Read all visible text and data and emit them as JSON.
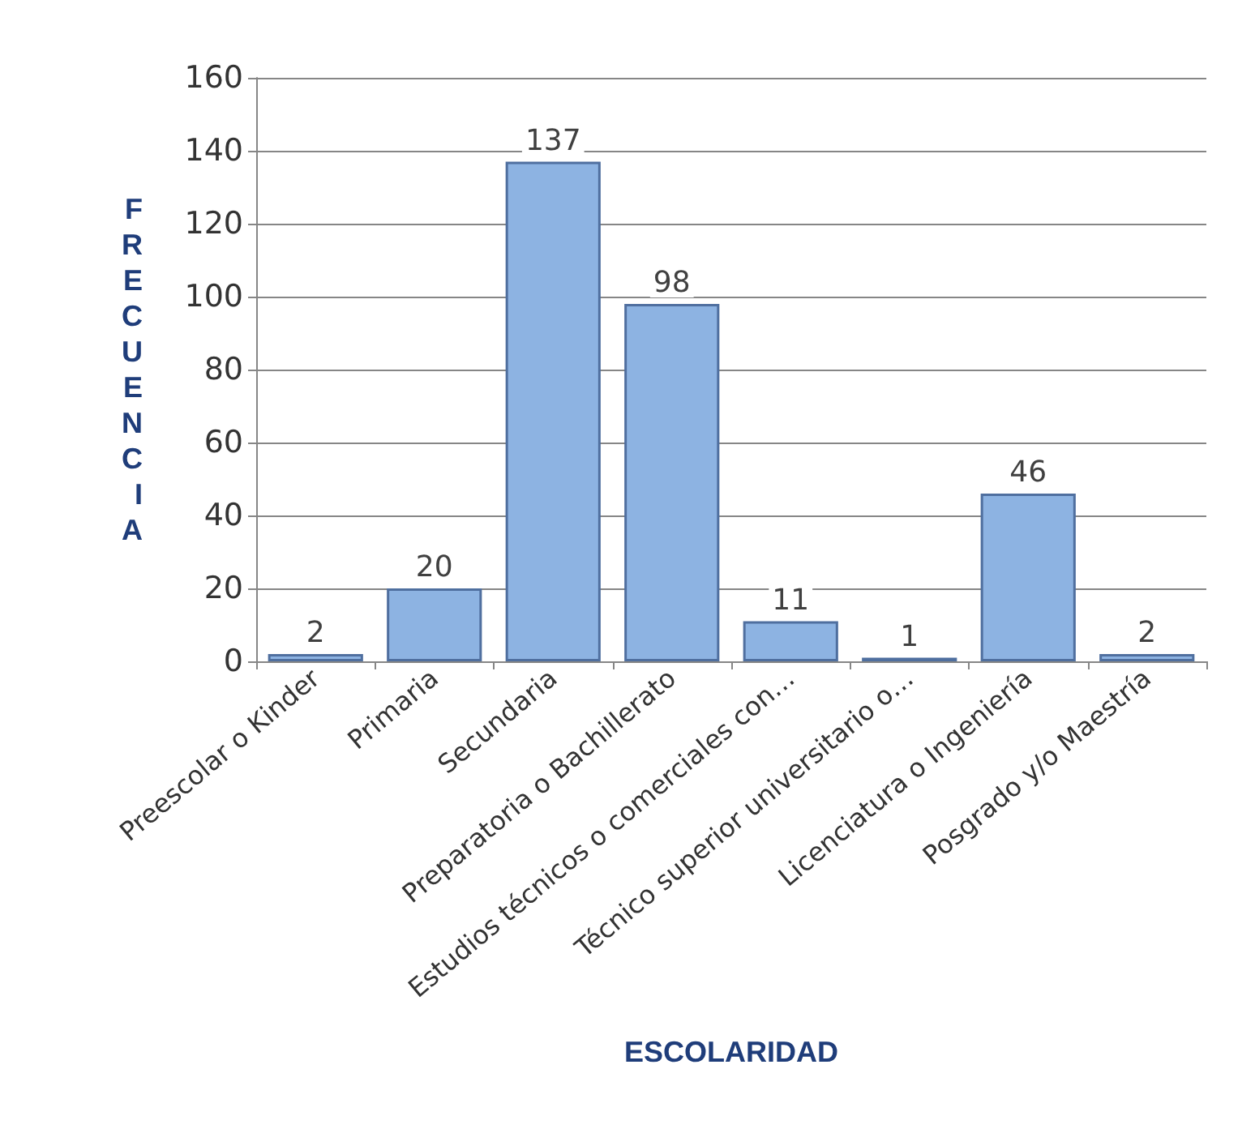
{
  "chart_data": {
    "type": "bar",
    "xlabel": "ESCOLARIDAD",
    "ylabel": "FRECUENCIA",
    "categories": [
      "Preescolar o Kinder",
      "Primaria",
      "Secundaria",
      "Preparatoria o Bachillerato",
      "Estudios técnicos o comerciales con…",
      "Técnico superior universitario o…",
      "Licenciatura o Ingeniería",
      "Posgrado y/o Maestría"
    ],
    "values": [
      2,
      20,
      137,
      98,
      11,
      1,
      46,
      2
    ],
    "color": "#8db3e2",
    "ylim": [
      0,
      160
    ],
    "yticks": [
      0,
      20,
      40,
      60,
      80,
      100,
      120,
      140,
      160
    ],
    "grid": "y",
    "data_labels": true
  }
}
